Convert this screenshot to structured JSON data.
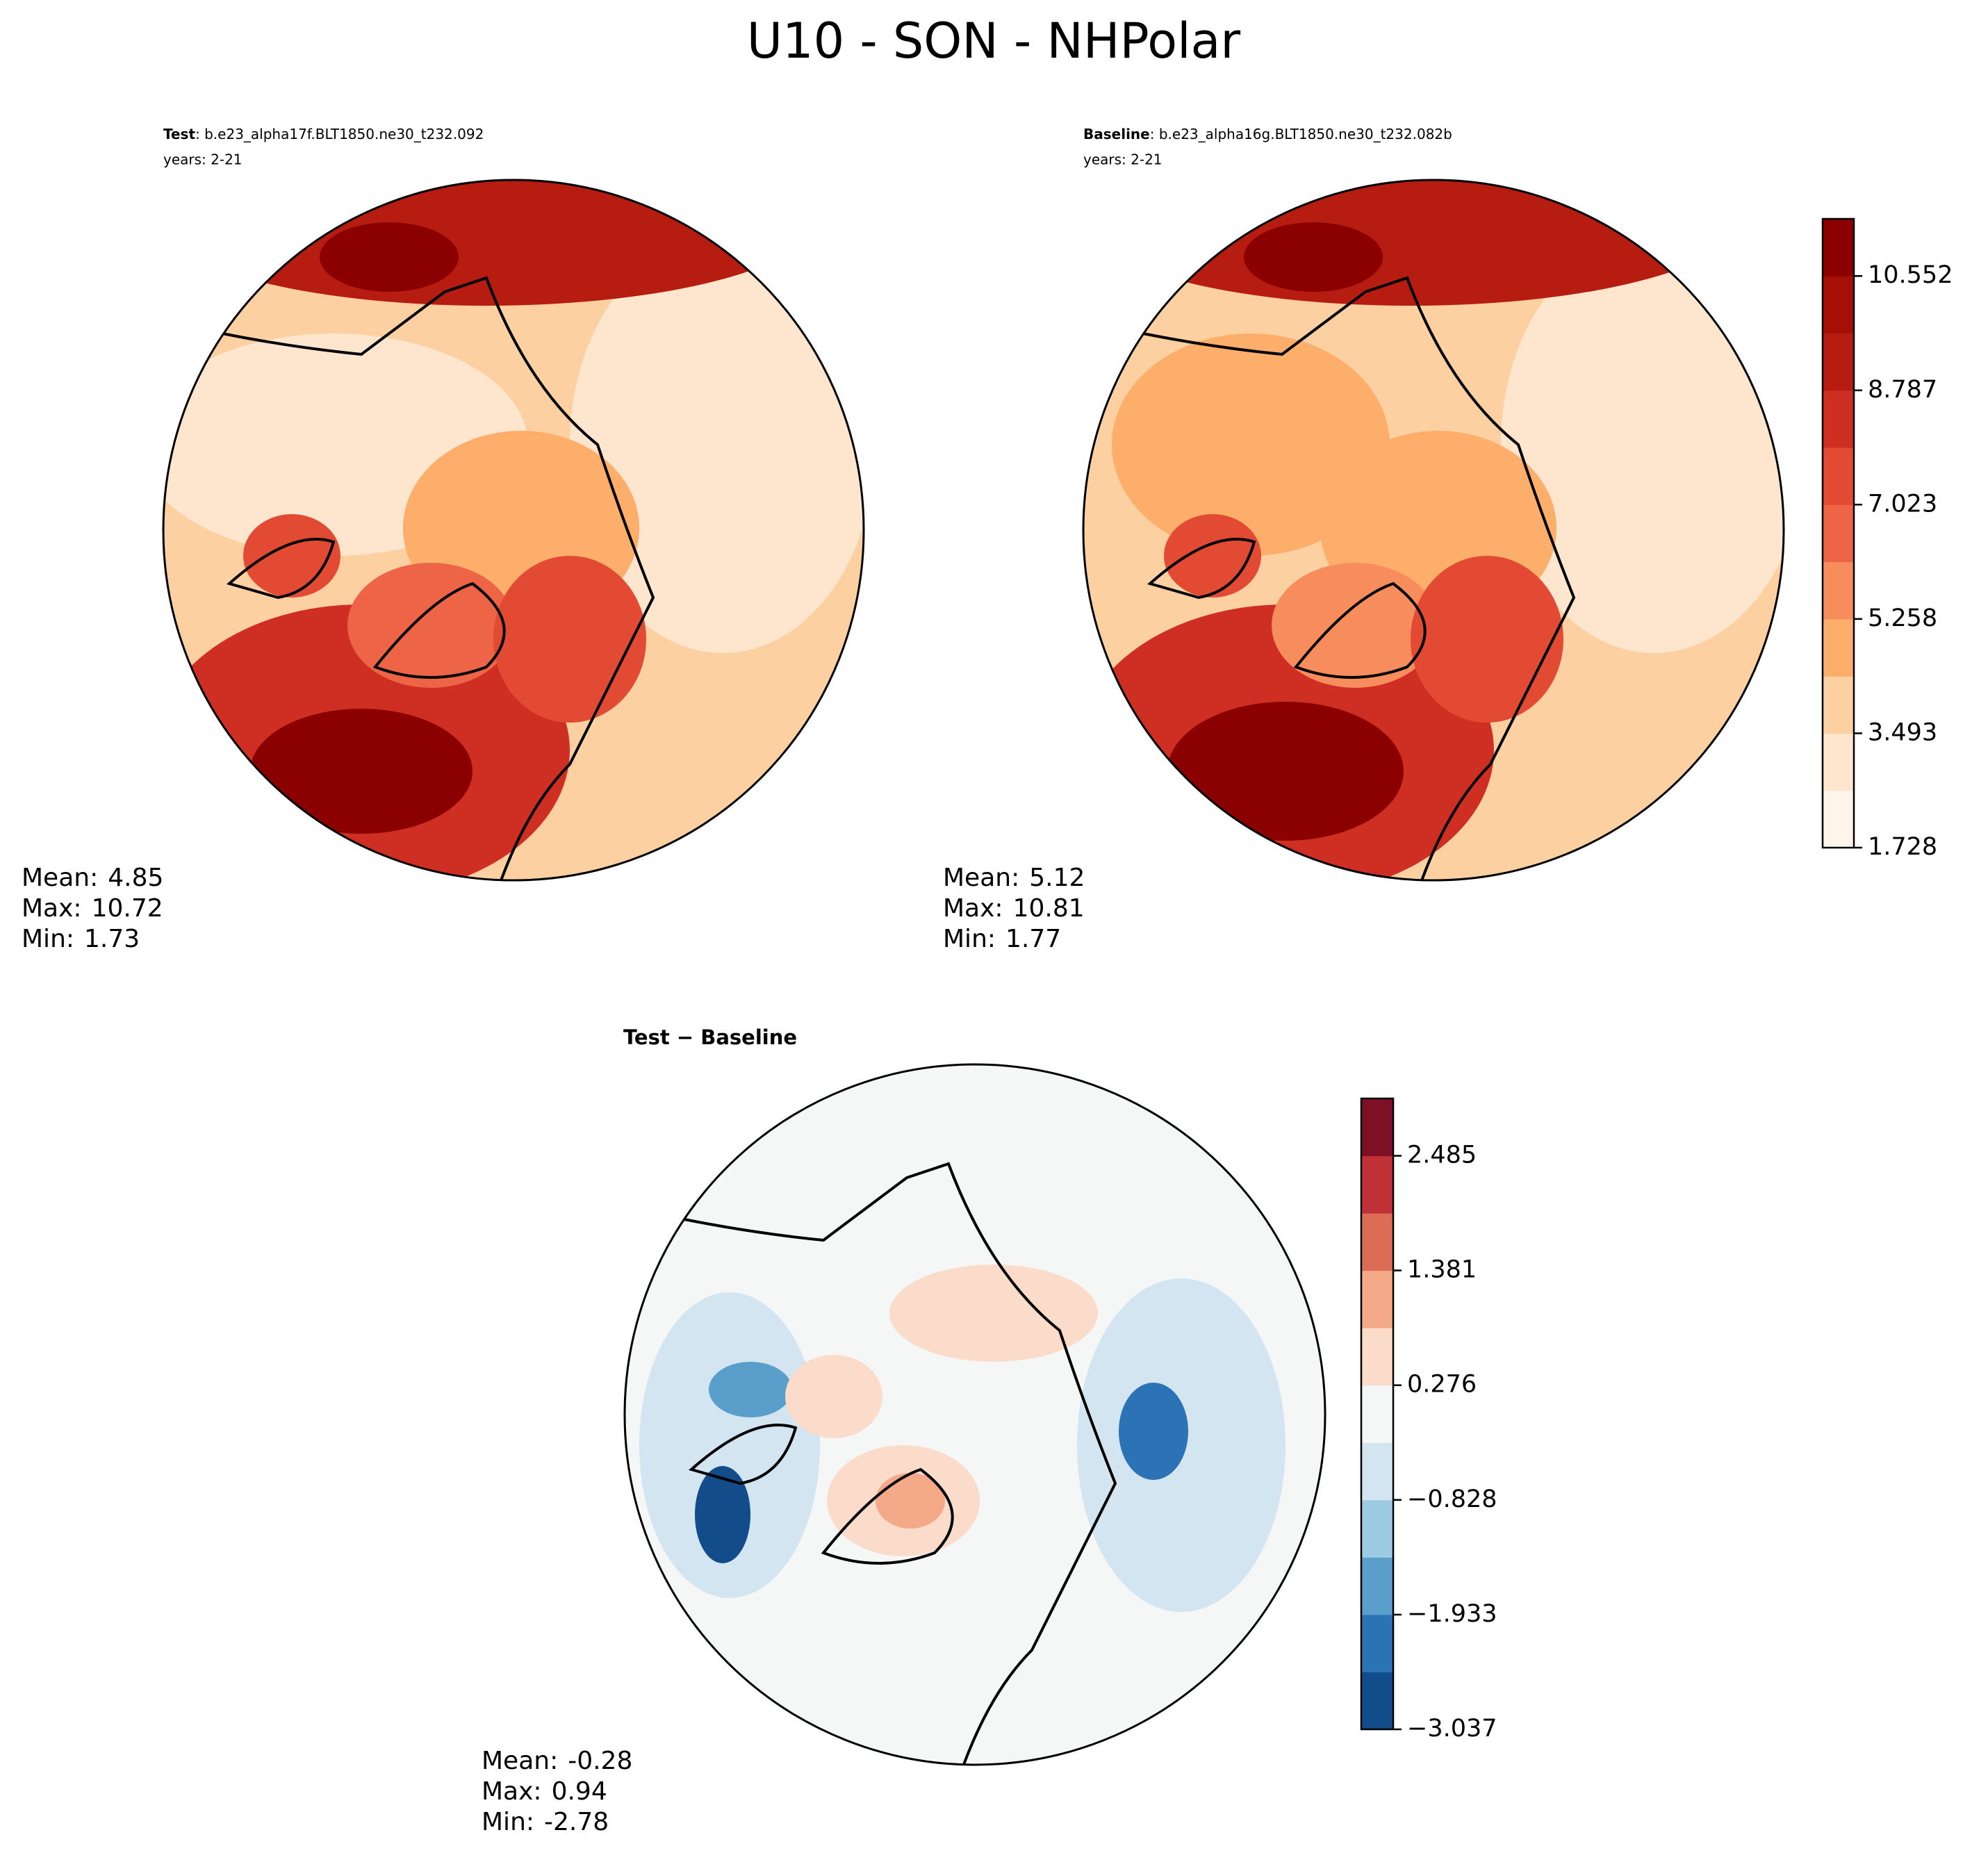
{
  "title": "U10 - SON - NHPolar",
  "panels": [
    {
      "name": "Test",
      "case": ": b.e23_alpha17f.BLT1850.ne30_t232.092",
      "years": "years: 2-21",
      "stats": [
        {
          "label": "Mean:",
          "value": 4.85
        },
        {
          "label": "Max:",
          "value": 10.72
        },
        {
          "label": "Min:",
          "value": 1.73
        }
      ]
    },
    {
      "name": "Baseline",
      "case": ": b.e23_alpha16g.BLT1850.ne30_t232.082b",
      "years": "years: 2-21",
      "stats": [
        {
          "label": "Mean:",
          "value": 5.12
        },
        {
          "label": "Max:",
          "value": 10.81
        },
        {
          "label": "Min:",
          "value": 1.77
        }
      ]
    },
    {
      "name": "Test − Baseline",
      "stats": [
        {
          "label": "Mean:",
          "value": -0.28
        },
        {
          "label": "Max:",
          "value": 0.94
        },
        {
          "label": "Min:",
          "value": -2.78
        }
      ]
    }
  ],
  "colorbars": [
    {
      "lim": [
        1.728,
        11.434
      ],
      "ticks": [
        1.728,
        3.493,
        5.258,
        7.023,
        8.787,
        10.552
      ],
      "colors": [
        "#fff5eb",
        "#fee6ce",
        "#fdd0a2",
        "#fdae6b",
        "#f78d5c",
        "#ee6446",
        "#e34a33",
        "#cf2e22",
        "#b71c10",
        "#a50f06",
        "#8b0000"
      ]
    },
    {
      "lim": [
        -3.037,
        3.037
      ],
      "ticks": [
        {
          "value": -3.037,
          "label": "−3.037"
        },
        {
          "value": -1.933,
          "label": "−1.933"
        },
        {
          "value": -0.828,
          "label": "−0.828"
        },
        0.276,
        1.381,
        2.485
      ],
      "colors": [
        "#124c8a",
        "#2c73b5",
        "#5a9ecb",
        "#9ccbe3",
        "#d3e5f0",
        "#f5f6f6",
        "#fbdbc9",
        "#f4a988",
        "#dd6c57",
        "#bf3136",
        "#7f0f24"
      ]
    }
  ]
}
